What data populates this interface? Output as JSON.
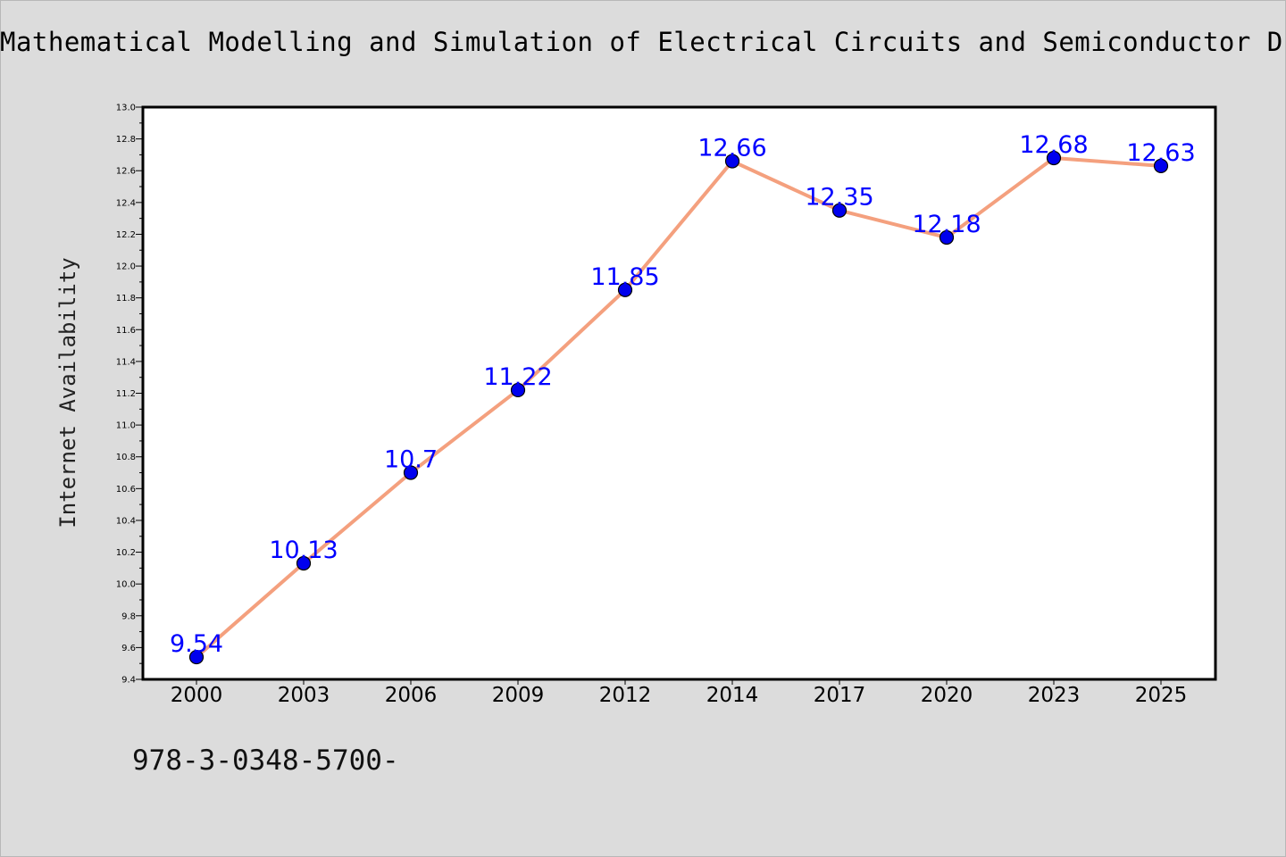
{
  "title": "Mathematical Modelling and Simulation of Electrical Circuits and Semiconductor D",
  "footer_text": "978-3-0348-5700-",
  "colors": {
    "background": "#dcdcdc",
    "plot_background": "#ffffff",
    "line": "#f4a07e",
    "marker": "#0000ee",
    "data_label": "#0000ff"
  },
  "chart_data": {
    "type": "line",
    "title": "Mathematical Modelling and Simulation of Electrical Circuits and Semiconductor D",
    "xlabel": "",
    "ylabel": "Internet Availability",
    "categories": [
      "2000",
      "2003",
      "2006",
      "2009",
      "2012",
      "2014",
      "2017",
      "2020",
      "2023",
      "2025"
    ],
    "series": [
      {
        "values": [
          9.54,
          10.13,
          10.7,
          11.22,
          11.85,
          12.66,
          12.35,
          12.18,
          12.68,
          12.63
        ],
        "labels": [
          "9.54",
          "10.13",
          "10.7",
          "11.22",
          "11.85",
          "12.66",
          "12.35",
          "12.18",
          "12.68",
          "12.63"
        ]
      }
    ],
    "ylim": [
      9.4,
      13.0
    ],
    "yticks": [
      "9.4",
      "9.6",
      "9.8",
      "10.0",
      "10.2",
      "10.4",
      "10.6",
      "10.8",
      "11.0",
      "11.2",
      "11.4",
      "11.6",
      "11.8",
      "12.0",
      "12.2",
      "12.4",
      "12.6",
      "12.8",
      "13.0"
    ],
    "grid": false,
    "legend": "none"
  }
}
